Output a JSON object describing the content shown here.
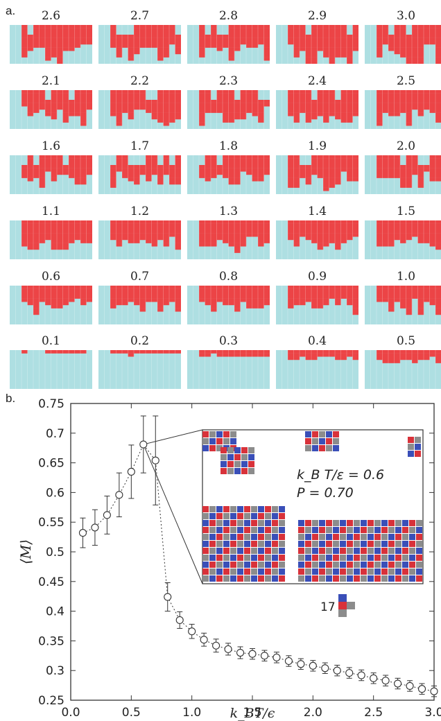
{
  "panel_labels": {
    "a": "a.",
    "b": "b."
  },
  "lattice_panels": [
    {
      "label": "2.6",
      "value": 2.6
    },
    {
      "label": "2.7",
      "value": 2.7
    },
    {
      "label": "2.8",
      "value": 2.8
    },
    {
      "label": "2.9",
      "value": 2.9
    },
    {
      "label": "3.0",
      "value": 3.0
    },
    {
      "label": "2.1",
      "value": 2.1
    },
    {
      "label": "2.2",
      "value": 2.2
    },
    {
      "label": "2.3",
      "value": 2.3
    },
    {
      "label": "2.4",
      "value": 2.4
    },
    {
      "label": "2.5",
      "value": 2.5
    },
    {
      "label": "1.6",
      "value": 1.6
    },
    {
      "label": "1.7",
      "value": 1.7
    },
    {
      "label": "1.8",
      "value": 1.8
    },
    {
      "label": "1.9",
      "value": 1.9
    },
    {
      "label": "2.0",
      "value": 2.0
    },
    {
      "label": "1.1",
      "value": 1.1
    },
    {
      "label": "1.2",
      "value": 1.2
    },
    {
      "label": "1.3",
      "value": 1.3
    },
    {
      "label": "1.4",
      "value": 1.4
    },
    {
      "label": "1.5",
      "value": 1.5
    },
    {
      "label": "0.6",
      "value": 0.6
    },
    {
      "label": "0.7",
      "value": 0.7
    },
    {
      "label": "0.8",
      "value": 0.8
    },
    {
      "label": "0.9",
      "value": 0.9
    },
    {
      "label": "1.0",
      "value": 1.0
    },
    {
      "label": "0.1",
      "value": 0.1
    },
    {
      "label": "0.2",
      "value": 0.2
    },
    {
      "label": "0.3",
      "value": 0.3
    },
    {
      "label": "0.4",
      "value": 0.4
    },
    {
      "label": "0.5",
      "value": 0.5
    }
  ],
  "colors": {
    "state_on": "#ec4446",
    "state_off": "#aedfe2",
    "line": "#333333",
    "tile_blue": "#3a4fb8",
    "tile_red": "#d8323a",
    "tile_gray": "#8c8c8c"
  },
  "chart_data": {
    "type": "scatter",
    "xlabel": "k_BT/ϵ",
    "ylabel": "⟨M⟩",
    "xlim": [
      0.0,
      3.0
    ],
    "ylim": [
      0.25,
      0.75
    ],
    "xticks": [
      "0.0",
      "0.5",
      "1.0",
      "1.5",
      "2.0",
      "2.5",
      "3.0"
    ],
    "yticks": [
      "0.25",
      "0.3",
      "0.35",
      "0.4",
      "0.45",
      "0.5",
      "0.55",
      "0.6",
      "0.65",
      "0.7",
      "0.75"
    ],
    "x": [
      0.1,
      0.2,
      0.3,
      0.4,
      0.5,
      0.6,
      0.7,
      0.8,
      0.9,
      1.0,
      1.1,
      1.2,
      1.3,
      1.4,
      1.5,
      1.6,
      1.7,
      1.8,
      1.9,
      2.0,
      2.1,
      2.2,
      2.3,
      2.4,
      2.5,
      2.6,
      2.7,
      2.8,
      2.9,
      3.0
    ],
    "y": [
      0.532,
      0.541,
      0.562,
      0.596,
      0.635,
      0.681,
      0.654,
      0.424,
      0.385,
      0.366,
      0.352,
      0.342,
      0.336,
      0.33,
      0.328,
      0.325,
      0.322,
      0.316,
      0.311,
      0.308,
      0.304,
      0.3,
      0.296,
      0.292,
      0.287,
      0.283,
      0.278,
      0.274,
      0.269,
      0.265
    ],
    "yerr": [
      0.025,
      0.03,
      0.032,
      0.037,
      0.045,
      0.048,
      0.075,
      0.024,
      0.014,
      0.012,
      0.011,
      0.011,
      0.01,
      0.01,
      0.009,
      0.009,
      0.009,
      0.009,
      0.009,
      0.009,
      0.009,
      0.009,
      0.009,
      0.009,
      0.009,
      0.009,
      0.009,
      0.009,
      0.009,
      0.009
    ],
    "grid": false,
    "inset": {
      "line1": "k_B T/ε = 0.6",
      "line2": "P = 0.70",
      "points_to_x": 0.6,
      "tile_label": "17"
    }
  }
}
